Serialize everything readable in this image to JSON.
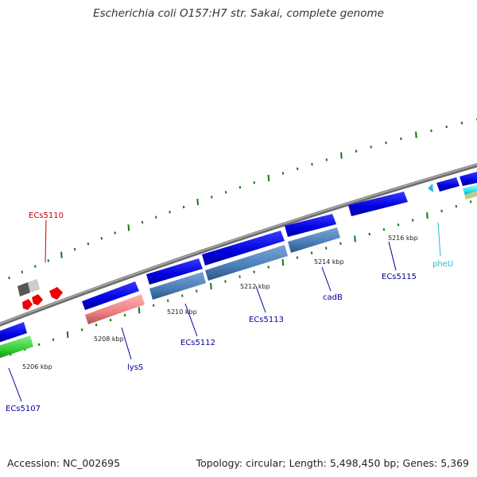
{
  "title": "Escherichia coli O157:H7 str. Sakai, complete genome",
  "footer": {
    "accession": "Accession: NC_002695",
    "stats": "Topology: circular; Length: 5,498,450 bp; Genes: 5,369"
  },
  "axis": {
    "ticks": [
      "5206 kbp",
      "5208 kbp",
      "5210 kbp",
      "5212 kbp",
      "5214 kbp",
      "5216 kbp"
    ]
  },
  "genes": [
    {
      "name": "ECs5110",
      "color": "#cc0000"
    },
    {
      "name": "ECs5107",
      "color": "#000099"
    },
    {
      "name": "lysS",
      "color": "#000099"
    },
    {
      "name": "ECs5112",
      "color": "#000099"
    },
    {
      "name": "ECs5113",
      "color": "#000099"
    },
    {
      "name": "cadB",
      "color": "#000099"
    },
    {
      "name": "ECs5115",
      "color": "#000099"
    },
    {
      "name": "pheU",
      "color": "#22bbcc"
    }
  ],
  "colors": {
    "cds_forward": "#0000ee",
    "cds_reverse_steel": "#4f80b8",
    "rrna_pink": "#ee8888",
    "green_feature": "#33cc33",
    "red_feature": "#ee0000",
    "trna_cyan": "#22ccee",
    "backbone": "#888888",
    "tick_green": "#117711"
  }
}
